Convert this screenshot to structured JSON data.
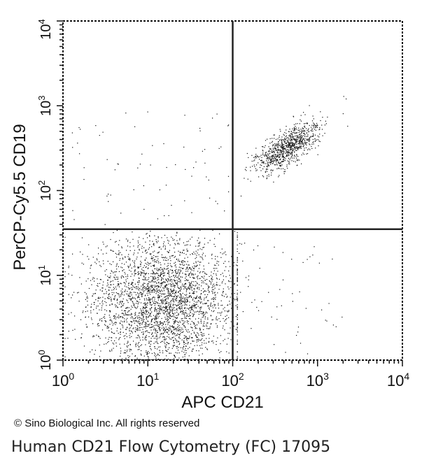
{
  "chart_data": {
    "type": "scatter",
    "xlabel": "APC CD21",
    "ylabel": "PerCP-Cy5.5 CD19",
    "x_scale": "log",
    "y_scale": "log",
    "xlim": [
      1,
      10000
    ],
    "ylim": [
      1,
      10000
    ],
    "x_ticks": [
      {
        "base": "10",
        "exp": "0",
        "value": 1
      },
      {
        "base": "10",
        "exp": "1",
        "value": 10
      },
      {
        "base": "10",
        "exp": "2",
        "value": 100
      },
      {
        "base": "10",
        "exp": "3",
        "value": 1000
      },
      {
        "base": "10",
        "exp": "4",
        "value": 10000
      }
    ],
    "y_ticks": [
      {
        "base": "10",
        "exp": "0",
        "value": 1
      },
      {
        "base": "10",
        "exp": "1",
        "value": 10
      },
      {
        "base": "10",
        "exp": "2",
        "value": 100
      },
      {
        "base": "10",
        "exp": "3",
        "value": 1000
      },
      {
        "base": "10",
        "exp": "4",
        "value": 10000
      }
    ],
    "quadrant_gates": {
      "x": 100,
      "y": 35
    },
    "populations": [
      {
        "center_x": 15,
        "center_y": 5,
        "count": 3200
      },
      {
        "center_x": 450,
        "center_y": 330,
        "count": 900
      }
    ],
    "point_color": "#111111"
  },
  "copyright": "© Sino Biological Inc. All rights reserved",
  "caption": "Human CD21 Flow Cytometry (FC) 17095"
}
